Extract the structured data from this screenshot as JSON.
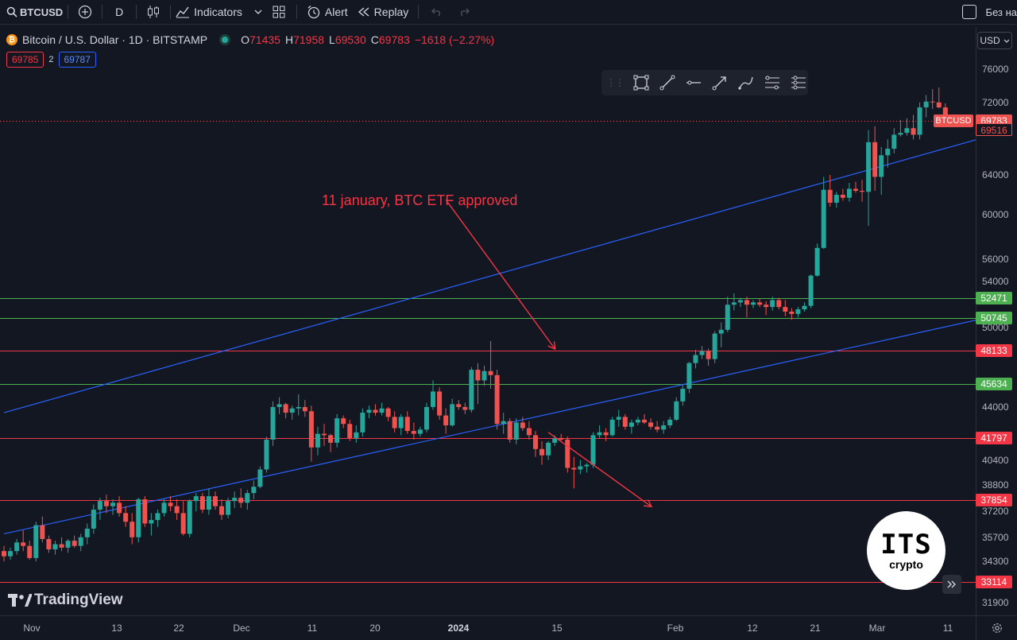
{
  "toolbar": {
    "symbol": "BTCUSD",
    "interval": "D",
    "indicators_label": "Indicators",
    "alert_label": "Alert",
    "replay_label": "Replay",
    "layout_name": "Без на"
  },
  "legend": {
    "title": "Bitcoin / U.S. Dollar · 1D · BITSTAMP",
    "o_label": "O",
    "o": "71435",
    "h_label": "H",
    "h": "71958",
    "l_label": "L",
    "l": "69530",
    "c_label": "C",
    "c": "69783",
    "change": "−1618 (−2.27%)",
    "bid": "69785",
    "spread": "2",
    "ask": "69787"
  },
  "currency": "USD",
  "annotation": "11 january, BTC ETF approved",
  "brand": {
    "tv": "TradingView",
    "its_big": "ITS",
    "its_small": "crypto"
  },
  "colors": {
    "up": "#26a69a",
    "down": "#ef5350",
    "support": "#f23645",
    "green_level": "#4caf50",
    "channel": "#2962ff",
    "bg": "#131722"
  },
  "chart_data": {
    "type": "candlestick",
    "symbol": "BTCUSD",
    "interval": "1D",
    "exchange": "BITSTAMP",
    "x_ticks": [
      "Nov",
      "13",
      "22",
      "Dec",
      "11",
      "20",
      "2024",
      "15",
      "Feb",
      "12",
      "21",
      "Mar",
      "11"
    ],
    "y_ticks": [
      76000,
      72000,
      64000,
      60000,
      56000,
      54000,
      50000,
      44000,
      40400,
      38800,
      37200,
      35700,
      34300,
      31900
    ],
    "ylim": [
      31500,
      78000
    ],
    "horizontal_levels": [
      {
        "value": 52471,
        "label": "52471",
        "color": "green"
      },
      {
        "value": 50745,
        "label": "50745",
        "color": "green"
      },
      {
        "value": 48133,
        "label": "48133",
        "color": "red"
      },
      {
        "value": 45634,
        "label": "45634",
        "color": "green"
      },
      {
        "value": 41797,
        "label": "41797",
        "color": "red"
      },
      {
        "value": 37854,
        "label": "37854",
        "color": "red"
      },
      {
        "value": 33114,
        "label": "33114",
        "color": "red"
      }
    ],
    "last_price": {
      "value": 69783,
      "label": "69783",
      "tag": "BTCUSD"
    },
    "prev_price": {
      "value": 69516,
      "label": "69516"
    },
    "candles": [
      [
        34900,
        35200,
        34300,
        34600
      ],
      [
        34600,
        35100,
        34400,
        34900
      ],
      [
        34900,
        35600,
        34700,
        35400
      ],
      [
        35400,
        36100,
        34900,
        35200
      ],
      [
        35200,
        35500,
        34400,
        34500
      ],
      [
        34500,
        36600,
        34300,
        36400
      ],
      [
        36400,
        36900,
        35400,
        35600
      ],
      [
        35600,
        35800,
        34800,
        35000
      ],
      [
        35000,
        35500,
        34700,
        35300
      ],
      [
        35300,
        35700,
        34900,
        35100
      ],
      [
        35100,
        35600,
        34800,
        35500
      ],
      [
        35500,
        35800,
        35100,
        35200
      ],
      [
        35200,
        35900,
        34900,
        35700
      ],
      [
        35700,
        36500,
        35300,
        36200
      ],
      [
        36200,
        37600,
        35900,
        37300
      ],
      [
        37300,
        38000,
        36700,
        37800
      ],
      [
        37800,
        38200,
        37100,
        37500
      ],
      [
        37500,
        37900,
        37000,
        37700
      ],
      [
        37700,
        38100,
        36900,
        37100
      ],
      [
        37100,
        37500,
        36300,
        36600
      ],
      [
        36600,
        37100,
        35300,
        35700
      ],
      [
        35700,
        38000,
        35400,
        37900
      ],
      [
        37900,
        38100,
        36300,
        36500
      ],
      [
        36500,
        37100,
        35800,
        36700
      ],
      [
        36700,
        37300,
        36300,
        37100
      ],
      [
        37100,
        37900,
        36900,
        37700
      ],
      [
        37700,
        38100,
        37200,
        37500
      ],
      [
        37500,
        37900,
        36700,
        37100
      ],
      [
        37100,
        37800,
        35800,
        35900
      ],
      [
        35900,
        37900,
        35700,
        37800
      ],
      [
        37800,
        38300,
        37200,
        38100
      ],
      [
        38100,
        38300,
        37100,
        37300
      ],
      [
        37300,
        38600,
        37000,
        38100
      ],
      [
        38100,
        38400,
        37300,
        37500
      ],
      [
        37500,
        37900,
        36700,
        37000
      ],
      [
        37000,
        38000,
        36800,
        37800
      ],
      [
        37800,
        38400,
        37400,
        38000
      ],
      [
        38000,
        38600,
        37400,
        37700
      ],
      [
        37700,
        38500,
        37300,
        38300
      ],
      [
        38300,
        39100,
        37900,
        38700
      ],
      [
        38700,
        40000,
        38600,
        39800
      ],
      [
        39800,
        41900,
        39600,
        41700
      ],
      [
        41700,
        44400,
        41300,
        44000
      ],
      [
        44000,
        44700,
        43500,
        44200
      ],
      [
        44200,
        44300,
        43200,
        43600
      ],
      [
        43600,
        44100,
        43100,
        43900
      ],
      [
        43900,
        44900,
        43400,
        44000
      ],
      [
        44000,
        44500,
        43300,
        43700
      ],
      [
        43700,
        44100,
        40300,
        41200
      ],
      [
        41200,
        42600,
        40700,
        42100
      ],
      [
        42100,
        42800,
        41300,
        42000
      ],
      [
        42000,
        42100,
        40900,
        41500
      ],
      [
        41500,
        43500,
        41200,
        43200
      ],
      [
        43200,
        43400,
        42500,
        42800
      ],
      [
        42800,
        43100,
        41600,
        41800
      ],
      [
        41800,
        42700,
        41500,
        42200
      ],
      [
        42200,
        43900,
        41900,
        43600
      ],
      [
        43600,
        44100,
        43200,
        43800
      ],
      [
        43800,
        44200,
        43400,
        43600
      ],
      [
        43600,
        44300,
        43400,
        43900
      ],
      [
        43900,
        44000,
        43000,
        43300
      ],
      [
        43300,
        43700,
        42200,
        42500
      ],
      [
        42500,
        43500,
        42000,
        43300
      ],
      [
        43300,
        43700,
        42100,
        42300
      ],
      [
        42300,
        42900,
        41700,
        42100
      ],
      [
        42100,
        42600,
        41900,
        42400
      ],
      [
        42400,
        44300,
        42200,
        44000
      ],
      [
        44000,
        45900,
        43800,
        45100
      ],
      [
        45100,
        45400,
        43100,
        43400
      ],
      [
        43400,
        43900,
        42100,
        42700
      ],
      [
        42700,
        44600,
        42600,
        44200
      ],
      [
        44200,
        44500,
        43800,
        44000
      ],
      [
        44000,
        44300,
        43500,
        43800
      ],
      [
        43800,
        46900,
        43600,
        46700
      ],
      [
        46700,
        47200,
        44200,
        45900
      ],
      [
        45900,
        47000,
        45500,
        46600
      ],
      [
        46600,
        48900,
        45300,
        46300
      ],
      [
        46300,
        46700,
        42400,
        42800
      ],
      [
        42800,
        43600,
        42100,
        43000
      ],
      [
        43000,
        43200,
        41500,
        41700
      ],
      [
        41700,
        43200,
        41400,
        42900
      ],
      [
        42900,
        43300,
        42300,
        42500
      ],
      [
        42500,
        43000,
        41700,
        42000
      ],
      [
        42000,
        42300,
        40600,
        41100
      ],
      [
        41100,
        41600,
        40100,
        40700
      ],
      [
        40700,
        41600,
        40400,
        41500
      ],
      [
        41500,
        42000,
        41300,
        41800
      ],
      [
        41800,
        42100,
        41600,
        41700
      ],
      [
        41700,
        41900,
        39600,
        39900
      ],
      [
        39900,
        40600,
        38600,
        39800
      ],
      [
        39800,
        40400,
        39500,
        40000
      ],
      [
        40000,
        40200,
        39600,
        40100
      ],
      [
        40100,
        42200,
        39900,
        42000
      ],
      [
        42000,
        42700,
        41800,
        42200
      ],
      [
        42200,
        42500,
        41600,
        42000
      ],
      [
        42000,
        43300,
        41900,
        43100
      ],
      [
        43100,
        43800,
        42600,
        43300
      ],
      [
        43300,
        43500,
        42400,
        42600
      ],
      [
        42600,
        43100,
        42100,
        42900
      ],
      [
        42900,
        43300,
        42700,
        43100
      ],
      [
        43100,
        43500,
        42800,
        42900
      ],
      [
        42900,
        43200,
        42400,
        42600
      ],
      [
        42600,
        43000,
        42200,
        42400
      ],
      [
        42400,
        43000,
        42100,
        42700
      ],
      [
        42700,
        43300,
        42500,
        43100
      ],
      [
        43100,
        44700,
        43000,
        44400
      ],
      [
        44400,
        45600,
        44100,
        45300
      ],
      [
        45300,
        47300,
        45000,
        47200
      ],
      [
        47200,
        48200,
        46800,
        47800
      ],
      [
        47800,
        48500,
        47500,
        48100
      ],
      [
        48100,
        48300,
        47000,
        47500
      ],
      [
        47500,
        49700,
        47200,
        49500
      ],
      [
        49500,
        50400,
        48400,
        49800
      ],
      [
        49800,
        52600,
        49600,
        51900
      ],
      [
        51900,
        52900,
        51400,
        52100
      ],
      [
        52100,
        52500,
        51700,
        52300
      ],
      [
        52300,
        52600,
        50800,
        51900
      ],
      [
        51900,
        52300,
        51600,
        52100
      ],
      [
        52100,
        52400,
        51700,
        51900
      ],
      [
        51900,
        52200,
        51000,
        51700
      ],
      [
        51700,
        52600,
        51400,
        52300
      ],
      [
        52300,
        52500,
        51500,
        51700
      ],
      [
        51700,
        52300,
        50900,
        51300
      ],
      [
        51300,
        51600,
        50600,
        51100
      ],
      [
        51100,
        51700,
        50800,
        51500
      ],
      [
        51500,
        52100,
        51300,
        51800
      ],
      [
        51800,
        54600,
        51600,
        54500
      ],
      [
        54500,
        57400,
        54400,
        57000
      ],
      [
        57000,
        63800,
        56900,
        62500
      ],
      [
        62500,
        64000,
        60800,
        61200
      ],
      [
        61200,
        62300,
        60700,
        62000
      ],
      [
        62000,
        62600,
        61400,
        61700
      ],
      [
        61700,
        63200,
        61300,
        62600
      ],
      [
        62600,
        63300,
        62200,
        62400
      ],
      [
        62400,
        63500,
        61300,
        62300
      ],
      [
        62300,
        68800,
        59000,
        67500
      ],
      [
        67500,
        69200,
        62400,
        63800
      ],
      [
        63800,
        67000,
        62000,
        66100
      ],
      [
        66100,
        67800,
        64800,
        66800
      ],
      [
        66800,
        69000,
        66300,
        68300
      ],
      [
        68300,
        69900,
        68100,
        68500
      ],
      [
        68500,
        70100,
        68200,
        69000
      ],
      [
        69000,
        70500,
        67800,
        68300
      ],
      [
        68300,
        72000,
        67800,
        71400
      ],
      [
        71400,
        72900,
        70200,
        72100
      ],
      [
        72100,
        73600,
        71200,
        72000
      ],
      [
        72000,
        73800,
        71300,
        71400
      ],
      [
        71400,
        71900,
        69500,
        69800
      ]
    ],
    "channel_lines": [
      {
        "from": {
          "index": 0,
          "value": 43600
        },
        "to": {
          "index": 152,
          "value": 67800
        }
      },
      {
        "from": {
          "index": 0,
          "value": 35900
        },
        "to": {
          "index": 152,
          "value": 50600
        }
      }
    ],
    "arrows": [
      {
        "from": {
          "index": 69,
          "value": 61500
        },
        "to": {
          "index": 86,
          "value": 48300
        }
      },
      {
        "from": {
          "index": 85,
          "value": 42200
        },
        "to": {
          "index": 101,
          "value": 37500
        }
      }
    ]
  }
}
